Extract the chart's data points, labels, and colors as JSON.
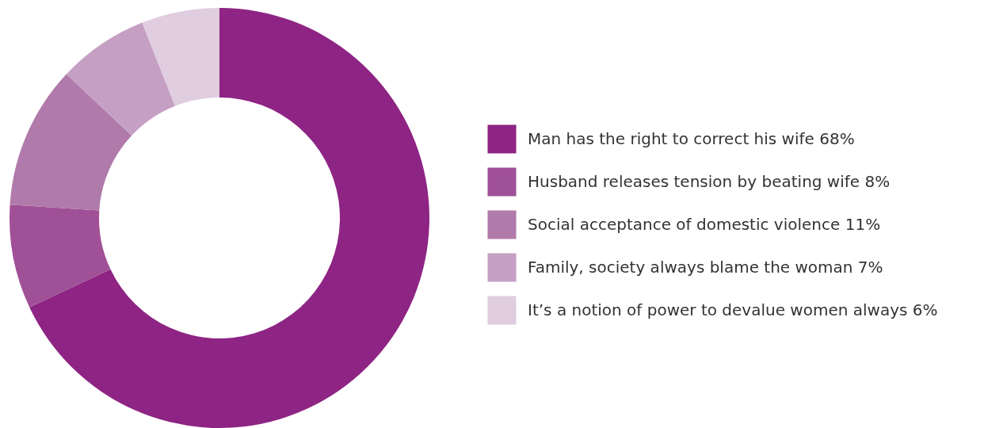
{
  "chart_data": {
    "type": "donut",
    "categories": [
      "Man has the right to correct his wife 68%",
      "Husband releases tension by beating wife 8%",
      "Social acceptance of domestic violence 11%",
      "Family, society always blame the woman 7%",
      "It’s a notion of power to devalue women always 6%"
    ],
    "values": [
      68,
      8,
      11,
      7,
      6
    ],
    "colors": [
      "#8e2483",
      "#a05096",
      "#b07aaa",
      "#c6a0c4",
      "#e0cde0"
    ],
    "legend": "right"
  }
}
